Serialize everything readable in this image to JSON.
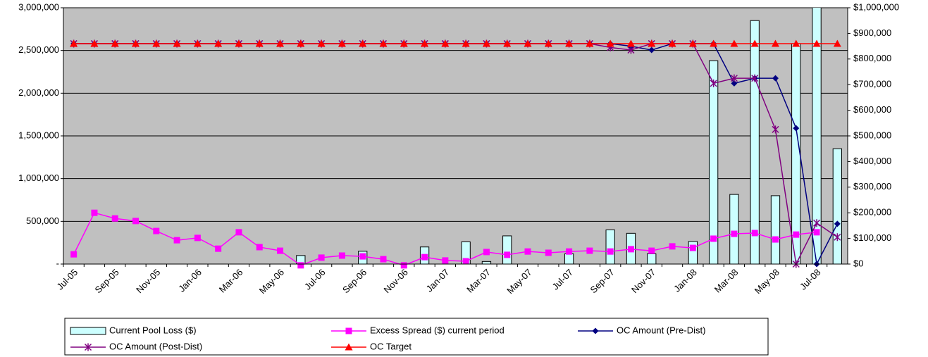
{
  "chart_data": {
    "type": "combo",
    "categories": [
      "Jul-05",
      null,
      "Sep-05",
      null,
      "Nov-05",
      null,
      "Jan-06",
      null,
      "Mar-06",
      null,
      "May-06",
      null,
      "Jul-06",
      null,
      "Sep-06",
      null,
      "Nov-06",
      null,
      "Jan-07",
      null,
      "Mar-07",
      null,
      "May-07",
      null,
      "Jul-07",
      null,
      "Sep-07",
      null,
      "Nov-07",
      null,
      "Jan-08",
      null,
      "Mar-08",
      null,
      "May-08",
      null,
      "Jul-08",
      null
    ],
    "ylim": [
      0,
      3000000
    ],
    "yticks": [
      {
        "value": 0,
        "label": "-"
      },
      {
        "value": 500000,
        "label": "500,000"
      },
      {
        "value": 1000000,
        "label": "1,000,000"
      },
      {
        "value": 1500000,
        "label": "1,500,000"
      },
      {
        "value": 2000000,
        "label": "2,000,000"
      },
      {
        "value": 2500000,
        "label": "2,500,000"
      },
      {
        "value": 3000000,
        "label": "3,000,000"
      }
    ],
    "y2lim": [
      0,
      1000000
    ],
    "y2ticks": [
      {
        "value": 0,
        "label": "$0"
      },
      {
        "value": 100000,
        "label": "$100,000"
      },
      {
        "value": 200000,
        "label": "$200,000"
      },
      {
        "value": 300000,
        "label": "$300,000"
      },
      {
        "value": 400000,
        "label": "$400,000"
      },
      {
        "value": 500000,
        "label": "$500,000"
      },
      {
        "value": 600000,
        "label": "$600,000"
      },
      {
        "value": 700000,
        "label": "$700,000"
      },
      {
        "value": 800000,
        "label": "$800,000"
      },
      {
        "value": 900000,
        "label": "$900,000"
      },
      {
        "value": 1000000,
        "label": "$1,000,000"
      }
    ],
    "grid": true,
    "legend": "bottom",
    "series": [
      {
        "name": "Current Pool Loss ($)",
        "type": "bar",
        "axis": "y",
        "color": "#ccffff",
        "values": [
          null,
          null,
          null,
          null,
          null,
          null,
          null,
          null,
          null,
          null,
          null,
          100000,
          null,
          null,
          150000,
          null,
          null,
          200000,
          null,
          260000,
          30000,
          330000,
          null,
          null,
          120000,
          null,
          400000,
          360000,
          120000,
          null,
          265000,
          2380000,
          815000,
          2850000,
          800000,
          2580000,
          3200000,
          1350000
        ]
      },
      {
        "name": "Excess Spread ($) current period",
        "type": "line",
        "axis": "y2",
        "color": "#ff00ff",
        "marker": "square",
        "values": [
          38000,
          200000,
          178000,
          168000,
          129000,
          93000,
          102000,
          60000,
          124000,
          66000,
          52000,
          -5000,
          25000,
          33000,
          30000,
          19000,
          -5000,
          27000,
          14000,
          11000,
          47000,
          36000,
          49000,
          44000,
          49000,
          52000,
          49000,
          58000,
          52000,
          69000,
          63000,
          99000,
          118000,
          121000,
          96000,
          115000,
          124000,
          null
        ]
      },
      {
        "name": "OC Amount (Pre-Dist)",
        "type": "line",
        "axis": "y2",
        "color": "#000080",
        "marker": "diamond",
        "values": [
          860000,
          860000,
          860000,
          860000,
          860000,
          860000,
          860000,
          860000,
          860000,
          860000,
          860000,
          860000,
          860000,
          860000,
          860000,
          860000,
          860000,
          860000,
          860000,
          860000,
          860000,
          860000,
          860000,
          860000,
          860000,
          860000,
          860000,
          850000,
          835000,
          860000,
          860000,
          860000,
          705000,
          725000,
          725000,
          530000,
          0,
          157000
        ]
      },
      {
        "name": "OC Amount (Post-Dist)",
        "type": "line",
        "axis": "y2",
        "color": "#800080",
        "marker": "star",
        "values": [
          860000,
          860000,
          860000,
          860000,
          860000,
          860000,
          860000,
          860000,
          860000,
          860000,
          860000,
          860000,
          860000,
          860000,
          860000,
          860000,
          860000,
          860000,
          860000,
          860000,
          860000,
          860000,
          860000,
          860000,
          860000,
          860000,
          845000,
          835000,
          860000,
          860000,
          860000,
          705000,
          725000,
          725000,
          525000,
          0,
          160000,
          105000
        ]
      },
      {
        "name": "OC Target",
        "type": "line",
        "axis": "y2",
        "color": "#ff0000",
        "marker": "triangle",
        "values": [
          860000,
          860000,
          860000,
          860000,
          860000,
          860000,
          860000,
          860000,
          860000,
          860000,
          860000,
          860000,
          860000,
          860000,
          860000,
          860000,
          860000,
          860000,
          860000,
          860000,
          860000,
          860000,
          860000,
          860000,
          860000,
          860000,
          860000,
          860000,
          860000,
          860000,
          860000,
          860000,
          860000,
          860000,
          860000,
          860000,
          860000,
          860000
        ]
      }
    ]
  }
}
